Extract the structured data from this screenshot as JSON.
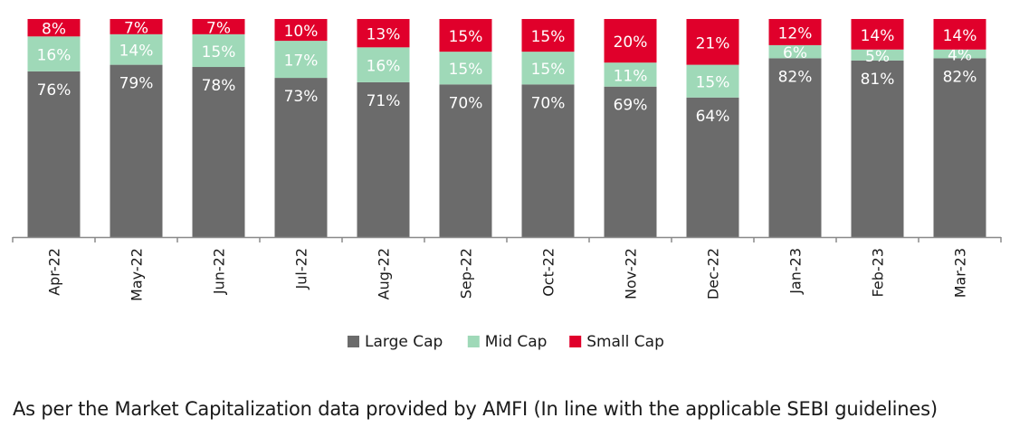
{
  "chart_data": {
    "type": "bar",
    "stacked": true,
    "categories": [
      "Apr-22",
      "May-22",
      "Jun-22",
      "Jul-22",
      "Aug-22",
      "Sep-22",
      "Oct-22",
      "Nov-22",
      "Dec-22",
      "Jan-23",
      "Feb-23",
      "Mar-23"
    ],
    "series": [
      {
        "name": "Large Cap",
        "color": "#6b6b6b",
        "label_color": "#ffffff",
        "values": [
          76,
          79,
          78,
          73,
          71,
          70,
          70,
          69,
          64,
          82,
          81,
          82
        ]
      },
      {
        "name": "Mid Cap",
        "color": "#9fd9b8",
        "label_color": "#ffffff",
        "values": [
          16,
          14,
          15,
          17,
          16,
          15,
          15,
          11,
          15,
          6,
          5,
          4
        ]
      },
      {
        "name": "Small Cap",
        "color": "#e0002b",
        "label_color": "#ffffff",
        "values": [
          8,
          7,
          7,
          10,
          13,
          15,
          15,
          20,
          21,
          12,
          14,
          14
        ]
      }
    ],
    "ylim": [
      0,
      100
    ],
    "unit": "%",
    "legend_position": "bottom",
    "grid": false
  },
  "footnote": "As per the Market Capitalization data provided by AMFI (In line with the applicable SEBI guidelines)"
}
